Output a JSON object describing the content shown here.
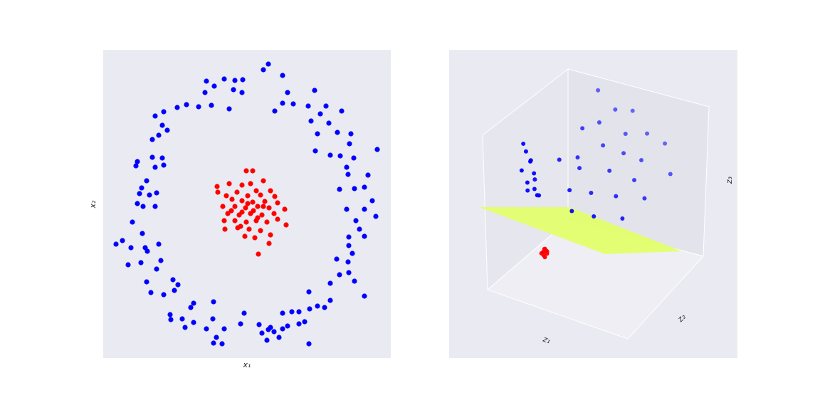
{
  "chart_data": [
    {
      "type": "scatter",
      "xlabel": "x₁",
      "ylabel": "x₂",
      "xlim": [
        -2.02,
        2.02
      ],
      "ylim": [
        -2.16,
        2.17
      ],
      "grid": false,
      "series": [
        {
          "color": "#0000ff",
          "x": [
            0.3,
            0.23,
            0.5,
            -0.57,
            -0.32,
            -0.17,
            -0.06,
            -0.46,
            -0.19,
            -0.59,
            -0.07,
            0.57,
            0.95,
            -0.85,
            -0.98,
            -0.68,
            -0.5,
            -0.25,
            0.5,
            0.65,
            0.39,
            0.86,
            1.11,
            1.03,
            1.33,
            -1.29,
            -1.17,
            0.9,
            1.15,
            -1.19,
            -1.12,
            -1.24,
            0.99,
            1.27,
            1.46,
            -1.33,
            1.44,
            0.96,
            1.17,
            1.31,
            1.5,
            1.83,
            -1.33,
            -1.19,
            -1.54,
            -1.56,
            -1.29,
            -1.17,
            1.4,
            1.42,
            1.7,
            -1.41,
            -1.48,
            1.65,
            1.51,
            1.3,
            -1.51,
            -1.27,
            -1.37,
            1.76,
            -1.54,
            -1.46,
            -1.29,
            1.4,
            1.65,
            1.81,
            1.53,
            -1.61,
            -1.47,
            1.58,
            1.43,
            1.65,
            -1.75,
            -1.84,
            -1.24,
            -1.63,
            -1.43,
            1.43,
            -1.4,
            1.48,
            1.26,
            -1.21,
            -1.49,
            -1.67,
            1.42,
            -1.27,
            1.43,
            1.3,
            -1.04,
            -1.41,
            1.17,
            1.51,
            -0.97,
            -1.35,
            -1.02,
            -1.17,
            0.87,
            1.65,
            1.17,
            -0.75,
            -0.79,
            -0.47,
            0.99,
            1.09,
            0.88,
            0.73,
            -1.08,
            -0.04,
            0.63,
            0.5,
            -0.91,
            -0.48,
            -1.07,
            -0.75,
            -0.09,
            0.81,
            0.33,
            0.17,
            0.3,
            0.5,
            0.73,
            0.57,
            -0.87,
            -0.57,
            -0.32,
            0.21,
            0.38,
            -0.43,
            -0.35,
            0.28,
            0.45,
            0.87,
            -0.47
          ],
          "y": [
            1.97,
            1.89,
            1.81,
            1.73,
            1.76,
            1.74,
            1.75,
            1.66,
            1.61,
            1.57,
            1.57,
            1.57,
            1.6,
            1.4,
            1.36,
            1.37,
            1.39,
            1.34,
            1.42,
            1.41,
            1.31,
            1.38,
            1.38,
            1.27,
            1.31,
            1.24,
            1.3,
            1.17,
            1.14,
            1.11,
            1.04,
            0.97,
            0.99,
            1.01,
            0.99,
            0.91,
            0.85,
            0.75,
            0.69,
            0.68,
            0.65,
            0.77,
            0.66,
            0.65,
            0.6,
            0.54,
            0.52,
            0.55,
            0.52,
            0.42,
            0.41,
            0.33,
            0.23,
            0.24,
            0.22,
            0.21,
            0.15,
            0.16,
            0.13,
            0.05,
            0.01,
            -0.03,
            -0.03,
            -0.07,
            -0.07,
            -0.17,
            -0.23,
            -0.25,
            -0.41,
            -0.35,
            -0.46,
            -0.45,
            -0.51,
            -0.56,
            -0.56,
            -0.61,
            -0.61,
            -0.58,
            -0.66,
            -0.69,
            -0.77,
            -0.79,
            -0.82,
            -0.85,
            -0.81,
            -0.91,
            -0.96,
            -0.99,
            -1.06,
            -1.09,
            -1.11,
            -1.08,
            -1.13,
            -1.24,
            -1.21,
            -1.27,
            -1.23,
            -1.29,
            -1.35,
            -1.39,
            -1.45,
            -1.37,
            -1.43,
            -1.45,
            -1.47,
            -1.51,
            -1.55,
            -1.53,
            -1.51,
            -1.53,
            -1.61,
            -1.61,
            -1.62,
            -1.66,
            -1.68,
            -1.65,
            -1.73,
            -1.69,
            -1.76,
            -1.75,
            -1.68,
            -1.71,
            -1.73,
            -1.75,
            -1.75,
            -1.81,
            -1.79,
            -1.87,
            -1.96,
            -1.91,
            -1.87,
            -1.96,
            -1.95
          ]
        },
        {
          "color": "#ff0000",
          "x": [
            -0.01,
            0.08,
            0.23,
            -0.42,
            -0.25,
            -0.07,
            0.05,
            -0.14,
            0.13,
            0.33,
            -0.41,
            -0.29,
            0.01,
            0.19,
            0.39,
            -0.21,
            -0.07,
            0.08,
            0.25,
            0.43,
            -0.34,
            -0.17,
            -0.02,
            0.15,
            0.31,
            0.53,
            -0.27,
            -0.11,
            0.05,
            0.21,
            0.38,
            -0.32,
            -0.17,
            -0.01,
            0.13,
            0.28,
            0.55,
            -0.31,
            -0.13,
            0.03,
            0.19,
            0.33,
            -0.03,
            0.11,
            0.31,
            0.16,
            -0.07,
            0.09,
            0.01,
            0.15,
            -0.09,
            0.23,
            -0.22,
            0.43
          ],
          "y": [
            0.47,
            0.47,
            0.33,
            0.25,
            0.29,
            0.27,
            0.29,
            0.17,
            0.19,
            0.19,
            0.17,
            0.12,
            0.12,
            0.13,
            0.11,
            0.07,
            0.05,
            0.03,
            0.04,
            0.02,
            -0.03,
            -0.03,
            -0.05,
            -0.03,
            -0.05,
            -0.07,
            -0.13,
            -0.15,
            -0.13,
            -0.15,
            -0.13,
            -0.23,
            -0.23,
            -0.25,
            -0.23,
            -0.25,
            -0.29,
            -0.35,
            -0.33,
            -0.35,
            -0.37,
            -0.43,
            -0.45,
            -0.47,
            -0.55,
            -0.7,
            -0.11,
            -0.09,
            0.01,
            -0.19,
            -0.31,
            -0.03,
            -0.09,
            -0.21
          ]
        }
      ]
    },
    {
      "type": "scatter3d",
      "xlabel": "z₁",
      "ylabel": "z₂",
      "zlabel": "z₃",
      "xlim": [
        0,
        1
      ],
      "ylim": [
        0,
        1
      ],
      "zlim": [
        0,
        1
      ],
      "series": [
        {
          "color": "#0000ff",
          "x": [
            0.22,
            0.24,
            0.2,
            0.25,
            0.23,
            0.27,
            0.21,
            0.26,
            0.28,
            0.24,
            0.19,
            0.3,
            0.35,
            0.4,
            0.45,
            0.5,
            0.55,
            0.6,
            0.42,
            0.65,
            0.7,
            0.48,
            0.58,
            0.75,
            0.68,
            0.8,
            0.38,
            0.52,
            0.62,
            0.72,
            0.33,
            0.85,
            0.78,
            0.9,
            0.55,
            0.44
          ],
          "y": [
            0.1,
            0.12,
            0.08,
            0.15,
            0.1,
            0.12,
            0.14,
            0.09,
            0.16,
            0.18,
            0.12,
            0.1,
            0.3,
            0.45,
            0.25,
            0.6,
            0.35,
            0.5,
            0.7,
            0.2,
            0.4,
            0.8,
            0.75,
            0.55,
            0.85,
            0.3,
            0.55,
            0.15,
            0.65,
            0.7,
            0.85,
            0.5,
            0.9,
            0.75,
            0.9,
            0.4
          ],
          "z": [
            0.92,
            0.85,
            0.8,
            0.76,
            0.72,
            0.68,
            0.64,
            0.88,
            0.62,
            0.7,
            0.95,
            0.66,
            0.8,
            0.75,
            0.66,
            0.78,
            0.62,
            0.7,
            0.85,
            0.58,
            0.62,
            0.9,
            0.8,
            0.66,
            0.78,
            0.56,
            0.88,
            0.6,
            0.74,
            0.7,
            0.95,
            0.6,
            0.72,
            0.64,
            0.86,
            0.72
          ]
        },
        {
          "color": "#ff0000",
          "x": [
            0.34,
            0.36,
            0.35,
            0.37,
            0.34,
            0.36,
            0.35,
            0.33,
            0.36,
            0.35
          ],
          "y": [
            0.1,
            0.11,
            0.09,
            0.1,
            0.12,
            0.09,
            0.11,
            0.1,
            0.12,
            0.1
          ],
          "z": [
            0.3,
            0.31,
            0.29,
            0.3,
            0.31,
            0.28,
            0.32,
            0.29,
            0.3,
            0.31
          ]
        }
      ]
    }
  ]
}
